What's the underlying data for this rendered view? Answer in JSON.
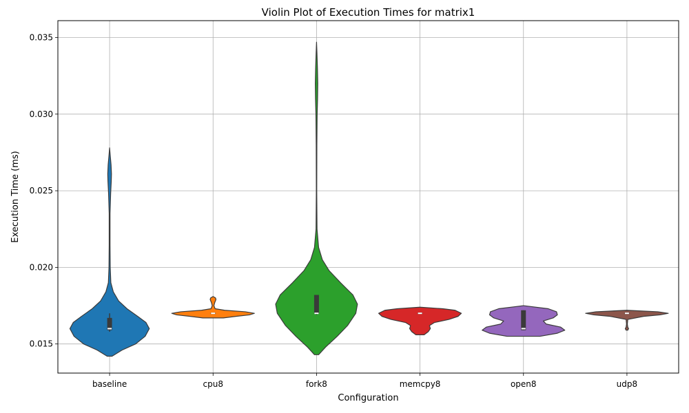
{
  "chart_data": {
    "type": "violin",
    "title": "Violin Plot of Execution Times for matrix1",
    "xlabel": "Configuration",
    "ylabel": "Execution Time (ms)",
    "ylim": [
      0.0131,
      0.0361
    ],
    "yticks": [
      0.015,
      0.02,
      0.025,
      0.03,
      0.035
    ],
    "ytick_labels": [
      "0.015",
      "0.020",
      "0.025",
      "0.030",
      "0.035"
    ],
    "grid": true,
    "categories": [
      "baseline",
      "cpu8",
      "fork8",
      "memcpy8",
      "open8",
      "udp8"
    ],
    "series": [
      {
        "category": "baseline",
        "color": "#1f77b4",
        "range": [
          0.0142,
          0.0278
        ],
        "q1": 0.0159,
        "median": 0.016,
        "q3": 0.0167,
        "whisker": [
          0.0158,
          0.017
        ],
        "density": [
          [
            0.0142,
            0.06
          ],
          [
            0.0146,
            0.3
          ],
          [
            0.015,
            0.63
          ],
          [
            0.0155,
            0.86
          ],
          [
            0.016,
            0.96
          ],
          [
            0.0164,
            0.88
          ],
          [
            0.0168,
            0.68
          ],
          [
            0.0173,
            0.42
          ],
          [
            0.0178,
            0.22
          ],
          [
            0.0184,
            0.09
          ],
          [
            0.019,
            0.03
          ],
          [
            0.02,
            0.015
          ],
          [
            0.0215,
            0.01
          ],
          [
            0.0235,
            0.01
          ],
          [
            0.0248,
            0.025
          ],
          [
            0.0256,
            0.04
          ],
          [
            0.0261,
            0.045
          ],
          [
            0.0267,
            0.035
          ],
          [
            0.0273,
            0.015
          ],
          [
            0.0278,
            0.0
          ]
        ]
      },
      {
        "category": "cpu8",
        "color": "#ff7f0e",
        "range": [
          0.0167,
          0.0181
        ],
        "q1": 0.017,
        "median": 0.017,
        "q3": 0.017,
        "whisker": [
          0.017,
          0.017
        ],
        "density": [
          [
            0.0167,
            0.25
          ],
          [
            0.0168,
            0.55
          ],
          [
            0.0169,
            0.88
          ],
          [
            0.017,
            1.0
          ],
          [
            0.0171,
            0.78
          ],
          [
            0.0172,
            0.28
          ],
          [
            0.0173,
            0.05
          ],
          [
            0.0175,
            0.02
          ],
          [
            0.0177,
            0.04
          ],
          [
            0.0179,
            0.07
          ],
          [
            0.018,
            0.06
          ],
          [
            0.0181,
            0.0
          ]
        ]
      },
      {
        "category": "fork8",
        "color": "#2ca02c",
        "range": [
          0.0143,
          0.0347
        ],
        "q1": 0.017,
        "median": 0.017,
        "q3": 0.0182,
        "whisker": [
          0.0169,
          0.0181
        ],
        "density": [
          [
            0.0143,
            0.05
          ],
          [
            0.0148,
            0.22
          ],
          [
            0.0155,
            0.5
          ],
          [
            0.0162,
            0.75
          ],
          [
            0.017,
            0.95
          ],
          [
            0.0176,
            0.99
          ],
          [
            0.0182,
            0.88
          ],
          [
            0.019,
            0.58
          ],
          [
            0.0198,
            0.3
          ],
          [
            0.0205,
            0.14
          ],
          [
            0.0213,
            0.05
          ],
          [
            0.0225,
            0.012
          ],
          [
            0.025,
            0.005
          ],
          [
            0.028,
            0.008
          ],
          [
            0.03,
            0.015
          ],
          [
            0.031,
            0.025
          ],
          [
            0.032,
            0.03
          ],
          [
            0.033,
            0.022
          ],
          [
            0.034,
            0.01
          ],
          [
            0.0347,
            0.0
          ]
        ]
      },
      {
        "category": "memcpy8",
        "color": "#d62728",
        "range": [
          0.0156,
          0.0174
        ],
        "q1": 0.017,
        "median": 0.017,
        "q3": 0.017,
        "whisker": [
          0.017,
          0.017
        ],
        "density": [
          [
            0.0156,
            0.1
          ],
          [
            0.0158,
            0.2
          ],
          [
            0.016,
            0.25
          ],
          [
            0.0162,
            0.23
          ],
          [
            0.0164,
            0.35
          ],
          [
            0.0166,
            0.7
          ],
          [
            0.0168,
            0.92
          ],
          [
            0.017,
            1.0
          ],
          [
            0.0172,
            0.85
          ],
          [
            0.0173,
            0.55
          ],
          [
            0.0174,
            0.0
          ]
        ]
      },
      {
        "category": "open8",
        "color": "#9467bd",
        "range": [
          0.0155,
          0.0175
        ],
        "q1": 0.0159,
        "median": 0.016,
        "q3": 0.0172,
        "whisker": [
          0.0159,
          0.0172
        ],
        "density": [
          [
            0.0155,
            0.4
          ],
          [
            0.0157,
            0.82
          ],
          [
            0.0159,
            1.0
          ],
          [
            0.0161,
            0.9
          ],
          [
            0.0163,
            0.55
          ],
          [
            0.0165,
            0.48
          ],
          [
            0.0167,
            0.72
          ],
          [
            0.0169,
            0.82
          ],
          [
            0.0171,
            0.8
          ],
          [
            0.0173,
            0.6
          ],
          [
            0.0175,
            0.0
          ]
        ]
      },
      {
        "category": "udp8",
        "color": "#8c564b",
        "range": [
          0.0159,
          0.0172
        ],
        "q1": 0.017,
        "median": 0.017,
        "q3": 0.017,
        "whisker": [
          0.017,
          0.017
        ],
        "density": [
          [
            0.0159,
            0.02
          ],
          [
            0.016,
            0.04
          ],
          [
            0.0161,
            0.02
          ],
          [
            0.0163,
            0.01
          ],
          [
            0.0166,
            0.02
          ],
          [
            0.0168,
            0.4
          ],
          [
            0.0169,
            0.8
          ],
          [
            0.017,
            1.0
          ],
          [
            0.0171,
            0.75
          ],
          [
            0.0172,
            0.0
          ]
        ]
      }
    ]
  }
}
